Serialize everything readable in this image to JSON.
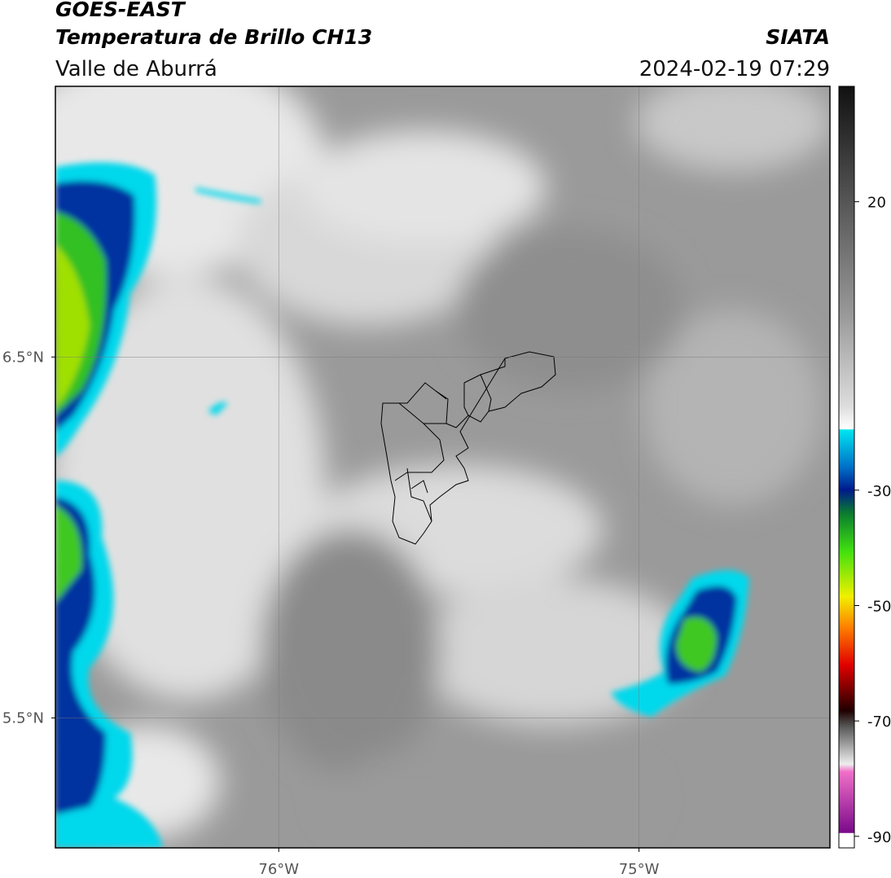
{
  "header": {
    "title": "GOES-EAST",
    "subtitle": "Temperatura de Brillo CH13",
    "source": "SIATA",
    "region": "Valle de Aburrá",
    "datetime": "2024-02-19 07:29"
  },
  "map": {
    "xlim": [
      -76.62,
      -74.47
    ],
    "ylim": [
      5.14,
      7.25
    ],
    "xticks": [
      {
        "value": -76,
        "label": "76°W"
      },
      {
        "value": -75,
        "label": "75°W"
      }
    ],
    "yticks": [
      {
        "value": 5.5,
        "label": "5.5°N"
      },
      {
        "value": 6.5,
        "label": "6.5°N"
      }
    ],
    "grid": true
  },
  "colorbar": {
    "lim": [
      -92,
      40
    ],
    "ticks": [
      -90,
      -70,
      -50,
      -30,
      20
    ]
  }
}
